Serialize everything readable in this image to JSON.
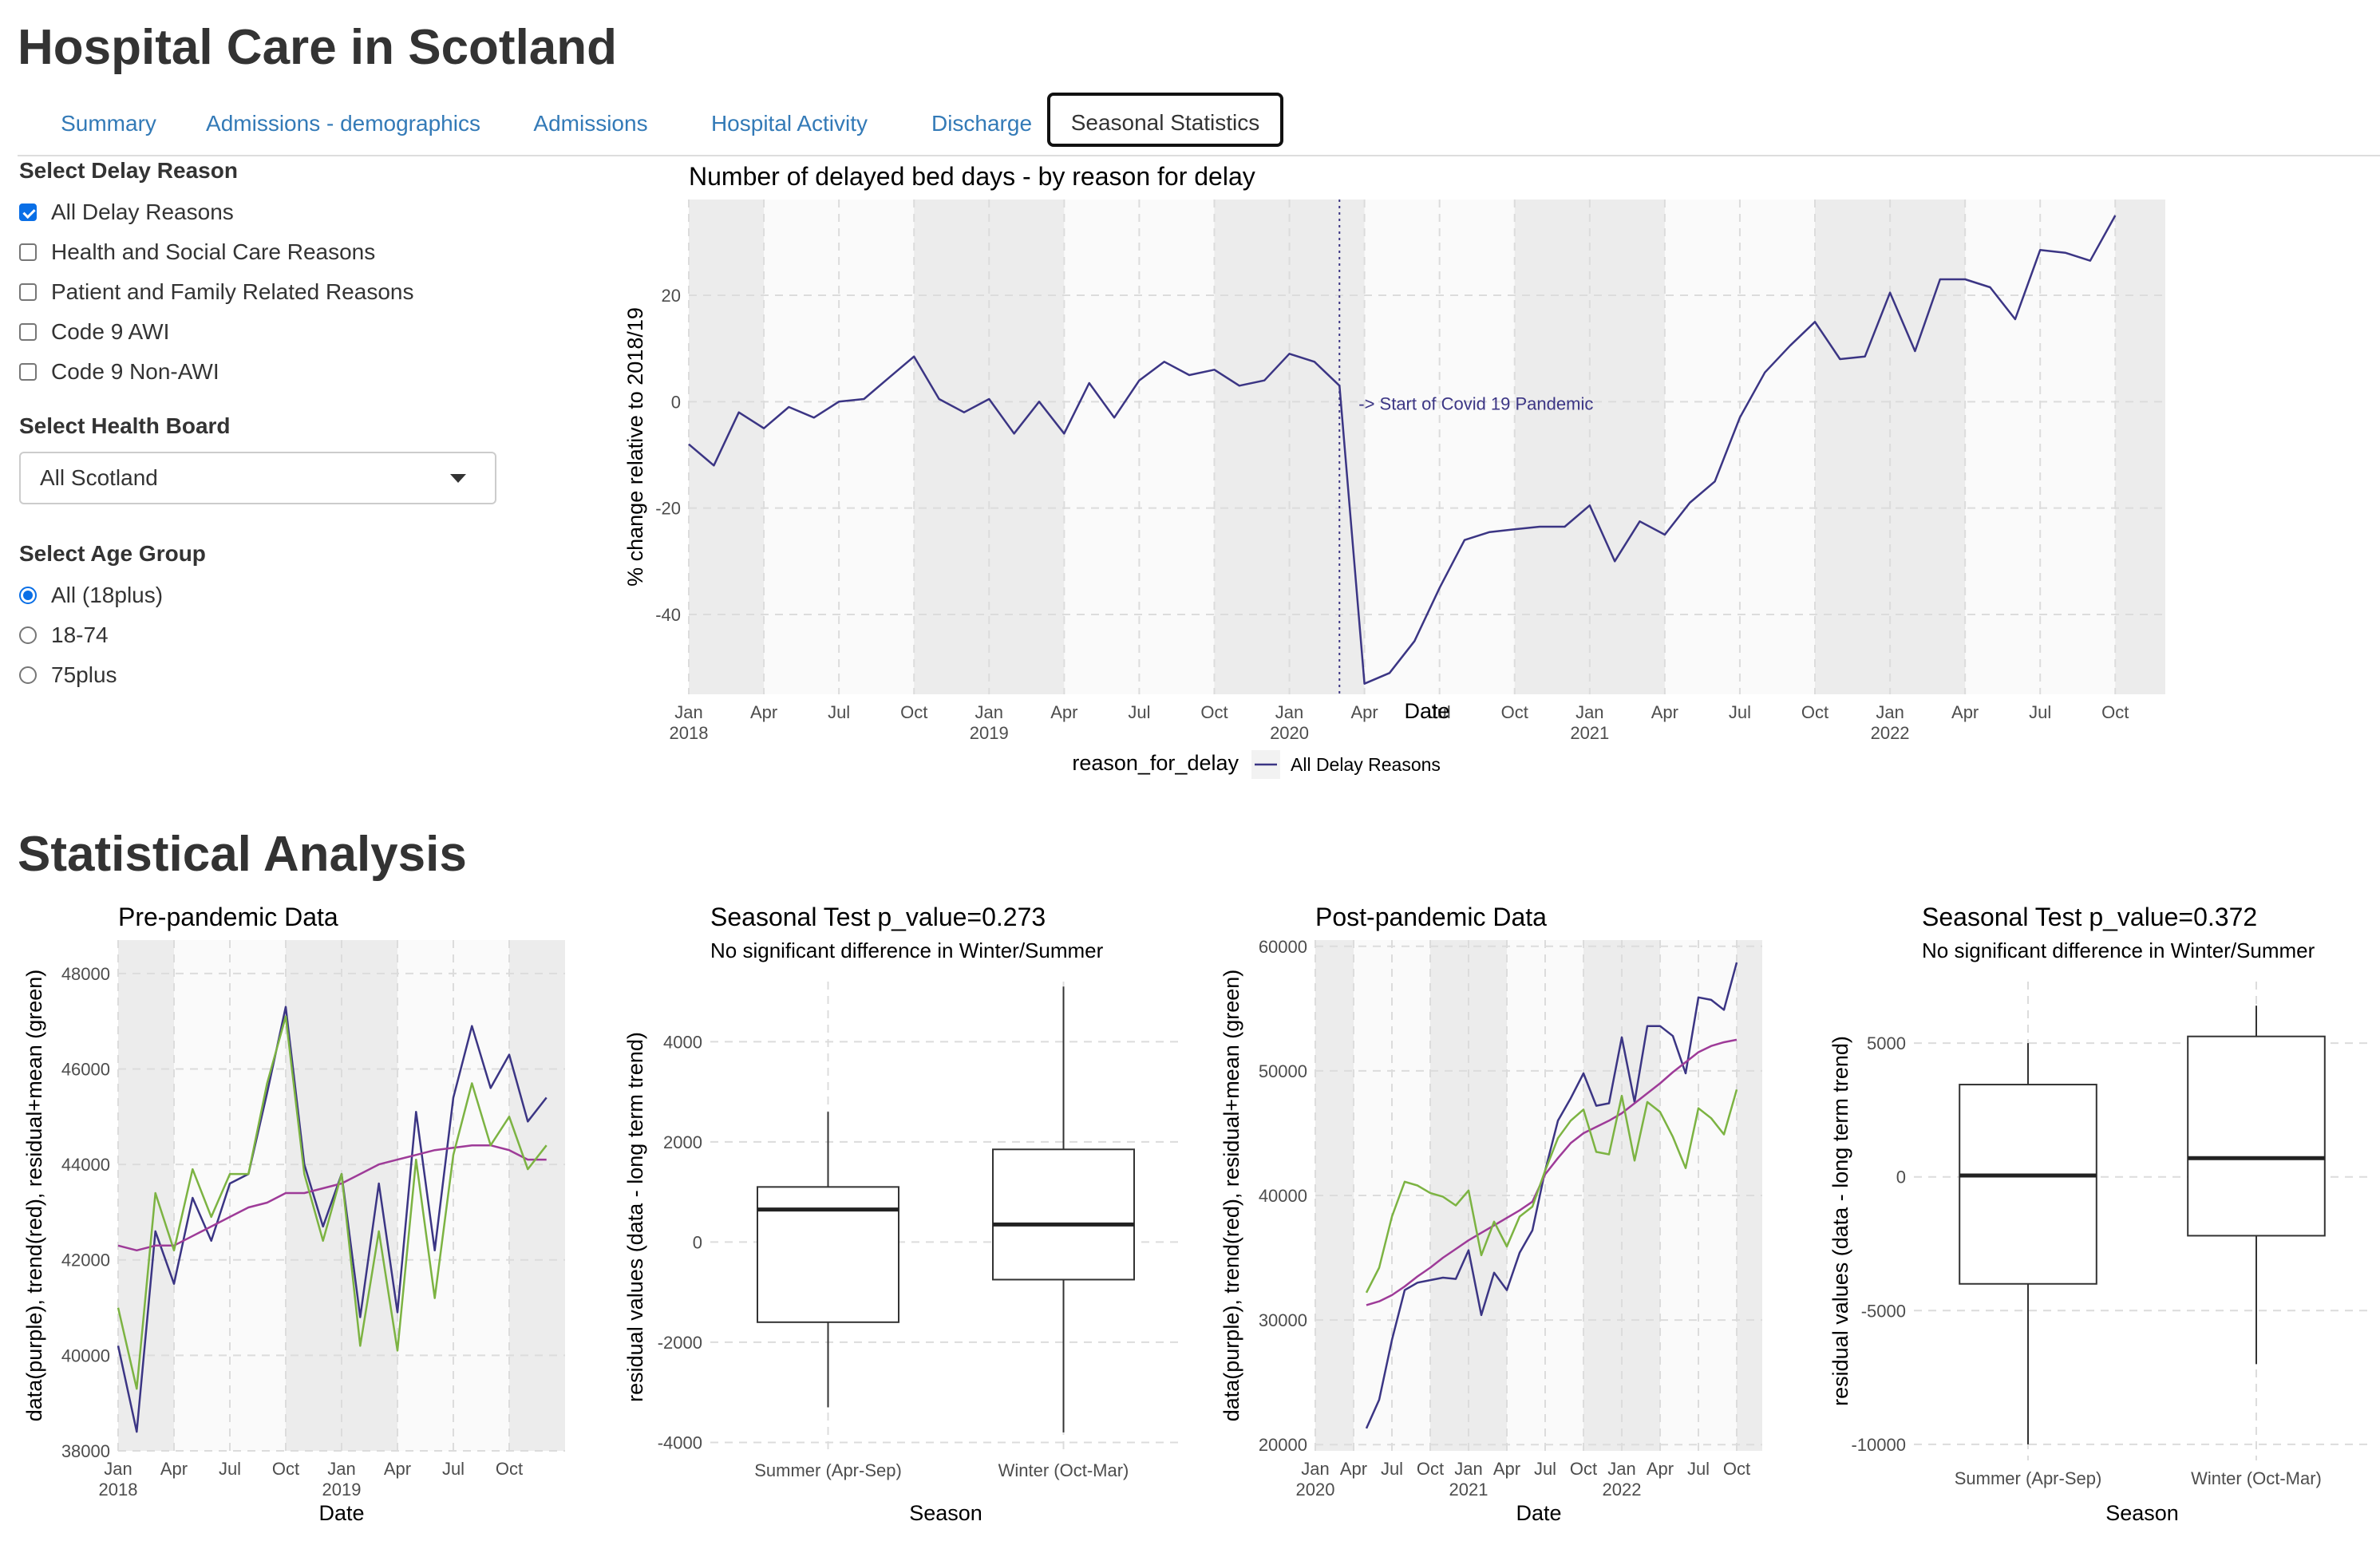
{
  "app": {
    "title": "Hospital Care in Scotland"
  },
  "tabs": [
    "Summary",
    "Admissions - demographics",
    "Admissions",
    "Hospital Activity",
    "Discharge",
    "Seasonal Statistics"
  ],
  "active_tab": "Seasonal Statistics",
  "sidebar": {
    "delay_reason_label": "Select Delay Reason",
    "delay_reasons": [
      {
        "label": "All Delay Reasons",
        "checked": true
      },
      {
        "label": "Health and Social Care Reasons",
        "checked": false
      },
      {
        "label": "Patient and Family Related Reasons",
        "checked": false
      },
      {
        "label": "Code 9 AWI",
        "checked": false
      },
      {
        "label": "Code 9 Non-AWI",
        "checked": false
      }
    ],
    "health_board_label": "Select Health Board",
    "health_board_value": "All Scotland",
    "age_group_label": "Select Age Group",
    "age_groups": [
      {
        "label": "All (18plus)",
        "selected": true
      },
      {
        "label": "18-74",
        "selected": false
      },
      {
        "label": "75plus",
        "selected": false
      }
    ]
  },
  "stats_heading": "Statistical Analysis",
  "colors": {
    "tab_link": "#337ab7",
    "series": "#3b3584",
    "trend": "#9e3b98",
    "residual": "#7cb342",
    "panel_bg": "#ebebeb",
    "checkbox": "#0a6fe6"
  },
  "chart_data": [
    {
      "id": "main",
      "type": "line",
      "title": "Number of delayed bed days - by reason for delay",
      "xlabel": "Date",
      "ylabel": "% change relative to 2018/19",
      "ylim": [
        -55,
        38
      ],
      "yticks": [
        20,
        0,
        -20,
        -40
      ],
      "xlim": [
        "2018-01",
        "2022-12"
      ],
      "xticks": [
        {
          "date": "2018-01",
          "label": "Jan",
          "year": "2018"
        },
        {
          "date": "2018-04",
          "label": "Apr"
        },
        {
          "date": "2018-07",
          "label": "Jul"
        },
        {
          "date": "2018-10",
          "label": "Oct"
        },
        {
          "date": "2019-01",
          "label": "Jan",
          "year": "2019"
        },
        {
          "date": "2019-04",
          "label": "Apr"
        },
        {
          "date": "2019-07",
          "label": "Jul"
        },
        {
          "date": "2019-10",
          "label": "Oct"
        },
        {
          "date": "2020-01",
          "label": "Jan",
          "year": "2020"
        },
        {
          "date": "2020-04",
          "label": "Apr"
        },
        {
          "date": "2020-07",
          "label": "Jul"
        },
        {
          "date": "2020-10",
          "label": "Oct"
        },
        {
          "date": "2021-01",
          "label": "Jan",
          "year": "2021"
        },
        {
          "date": "2021-04",
          "label": "Apr"
        },
        {
          "date": "2021-07",
          "label": "Jul"
        },
        {
          "date": "2021-10",
          "label": "Oct"
        },
        {
          "date": "2022-01",
          "label": "Jan",
          "year": "2022"
        },
        {
          "date": "2022-04",
          "label": "Apr"
        },
        {
          "date": "2022-07",
          "label": "Jul"
        },
        {
          "date": "2022-10",
          "label": "Oct"
        }
      ],
      "shaded_periods": [
        [
          "2018-01",
          "2018-04"
        ],
        [
          "2018-10",
          "2019-04"
        ],
        [
          "2019-10",
          "2020-04"
        ],
        [
          "2020-10",
          "2021-04"
        ],
        [
          "2021-10",
          "2022-04"
        ],
        [
          "2022-10",
          "2022-12"
        ]
      ],
      "vline": {
        "date": "2020-03",
        "label": "-> Start of Covid 19 Pandemic"
      },
      "legend_title": "reason_for_delay",
      "legend_position": "bottom",
      "series": [
        {
          "name": "All Delay Reasons",
          "x": [
            "2018-01",
            "2018-02",
            "2018-03",
            "2018-04",
            "2018-05",
            "2018-06",
            "2018-07",
            "2018-08",
            "2018-09",
            "2018-10",
            "2018-11",
            "2018-12",
            "2019-01",
            "2019-02",
            "2019-03",
            "2019-04",
            "2019-05",
            "2019-06",
            "2019-07",
            "2019-08",
            "2019-09",
            "2019-10",
            "2019-11",
            "2019-12",
            "2020-01",
            "2020-02",
            "2020-03",
            "2020-04",
            "2020-05",
            "2020-06",
            "2020-07",
            "2020-08",
            "2020-09",
            "2020-10",
            "2020-11",
            "2020-12",
            "2021-01",
            "2021-02",
            "2021-03",
            "2021-04",
            "2021-05",
            "2021-06",
            "2021-07",
            "2021-08",
            "2021-09",
            "2021-10",
            "2021-11",
            "2021-12",
            "2022-01",
            "2022-02",
            "2022-03",
            "2022-04",
            "2022-05",
            "2022-06",
            "2022-07",
            "2022-08",
            "2022-09",
            "2022-10"
          ],
          "y": [
            -8,
            -12,
            -2,
            -5,
            -1,
            -3,
            0,
            0.5,
            4.5,
            8.5,
            0.5,
            -2,
            0.5,
            -6,
            0,
            -6,
            3.5,
            -3,
            4,
            7.5,
            5,
            6,
            3,
            4,
            9,
            7.5,
            3,
            -53,
            -51,
            -45,
            -35,
            -26,
            -24.5,
            -24,
            -23.5,
            -23.5,
            -19.5,
            -30,
            -22.5,
            -25,
            -19,
            -15,
            -3,
            5.5,
            10.5,
            15,
            8,
            8.5,
            20.5,
            9.5,
            23,
            23,
            21.5,
            15.5,
            28.5,
            28,
            26.5,
            35
          ]
        }
      ]
    },
    {
      "id": "pre",
      "type": "line",
      "title": "Pre-pandemic Data",
      "xlabel": "Date",
      "ylabel": "data(purple), trend(red), residual+mean (green)",
      "ylim": [
        38000,
        48700
      ],
      "yticks": [
        38000,
        40000,
        42000,
        44000,
        46000,
        48000
      ],
      "xlim": [
        "2018-01",
        "2020-01"
      ],
      "xticks": [
        {
          "date": "2018-01",
          "label": "Jan",
          "year": "2018"
        },
        {
          "date": "2018-04",
          "label": "Apr"
        },
        {
          "date": "2018-07",
          "label": "Jul"
        },
        {
          "date": "2018-10",
          "label": "Oct"
        },
        {
          "date": "2019-01",
          "label": "Jan",
          "year": "2019"
        },
        {
          "date": "2019-04",
          "label": "Apr"
        },
        {
          "date": "2019-07",
          "label": "Jul"
        },
        {
          "date": "2019-10",
          "label": "Oct"
        }
      ],
      "shaded_periods": [
        [
          "2018-01",
          "2018-04"
        ],
        [
          "2018-10",
          "2019-04"
        ],
        [
          "2019-10",
          "2020-01"
        ]
      ],
      "series": [
        {
          "color": "#3b3584",
          "x": [
            "2018-01",
            "2018-02",
            "2018-03",
            "2018-04",
            "2018-05",
            "2018-06",
            "2018-07",
            "2018-08",
            "2018-09",
            "2018-10",
            "2018-11",
            "2018-12",
            "2019-01",
            "2019-02",
            "2019-03",
            "2019-04",
            "2019-05",
            "2019-06",
            "2019-07",
            "2019-08",
            "2019-09",
            "2019-10",
            "2019-11",
            "2019-12"
          ],
          "y": [
            40200,
            38400,
            42600,
            41500,
            43300,
            42400,
            43600,
            43800,
            45500,
            47300,
            44000,
            42700,
            43800,
            40800,
            43600,
            40900,
            45100,
            42200,
            45400,
            46900,
            45600,
            46300,
            44900,
            45400
          ]
        },
        {
          "color": "#9e3b98",
          "x": [
            "2018-01",
            "2018-02",
            "2018-03",
            "2018-04",
            "2018-05",
            "2018-06",
            "2018-07",
            "2018-08",
            "2018-09",
            "2018-10",
            "2018-11",
            "2018-12",
            "2019-01",
            "2019-02",
            "2019-03",
            "2019-04",
            "2019-05",
            "2019-06",
            "2019-07",
            "2019-08",
            "2019-09",
            "2019-10",
            "2019-11",
            "2019-12"
          ],
          "y": [
            42300,
            42200,
            42300,
            42300,
            42500,
            42700,
            42900,
            43100,
            43200,
            43400,
            43400,
            43500,
            43600,
            43800,
            44000,
            44100,
            44200,
            44300,
            44350,
            44400,
            44400,
            44300,
            44100,
            44100
          ]
        },
        {
          "color": "#7cb342",
          "x": [
            "2018-01",
            "2018-02",
            "2018-03",
            "2018-04",
            "2018-05",
            "2018-06",
            "2018-07",
            "2018-08",
            "2018-09",
            "2018-10",
            "2018-11",
            "2018-12",
            "2019-01",
            "2019-02",
            "2019-03",
            "2019-04",
            "2019-05",
            "2019-06",
            "2019-07",
            "2019-08",
            "2019-09",
            "2019-10",
            "2019-11",
            "2019-12"
          ],
          "y": [
            41000,
            39300,
            43400,
            42200,
            43900,
            42900,
            43800,
            43800,
            45700,
            47100,
            43800,
            42400,
            43800,
            40200,
            42600,
            40100,
            44100,
            41200,
            44200,
            45700,
            44400,
            45000,
            43900,
            44400
          ]
        }
      ]
    },
    {
      "id": "seasonal_pre",
      "type": "box",
      "title": "Seasonal Test  p_value=0.273",
      "subtitle": "No significant difference in Winter/Summer",
      "xlabel": "Season",
      "ylabel": "residual values (data - long term trend)",
      "ylim": [
        -4200,
        5200
      ],
      "yticks": [
        4000,
        2000,
        0,
        -2000,
        -4000
      ],
      "categories": [
        "Summer (Apr-Sep)",
        "Winter (Oct-Mar)"
      ],
      "boxes": [
        {
          "min": -3300,
          "q1": -1600,
          "median": 650,
          "q3": 1100,
          "max": 2600
        },
        {
          "min": -3800,
          "q1": -750,
          "median": 350,
          "q3": 1850,
          "max": 5100
        }
      ]
    },
    {
      "id": "post",
      "type": "line",
      "title": "Post-pandemic Data",
      "xlabel": "Date",
      "ylabel": "data(purple), trend(red), residual+mean (green)",
      "ylim": [
        19500,
        60500
      ],
      "yticks": [
        20000,
        30000,
        40000,
        50000,
        60000
      ],
      "xlim": [
        "2020-01",
        "2022-12"
      ],
      "xticks": [
        {
          "date": "2020-01",
          "label": "Jan",
          "year": "2020"
        },
        {
          "date": "2020-04",
          "label": "Apr"
        },
        {
          "date": "2020-07",
          "label": "Jul"
        },
        {
          "date": "2020-10",
          "label": "Oct"
        },
        {
          "date": "2021-01",
          "label": "Jan",
          "year": "2021"
        },
        {
          "date": "2021-04",
          "label": "Apr"
        },
        {
          "date": "2021-07",
          "label": "Jul"
        },
        {
          "date": "2021-10",
          "label": "Oct"
        },
        {
          "date": "2022-01",
          "label": "Jan",
          "year": "2022"
        },
        {
          "date": "2022-04",
          "label": "Apr"
        },
        {
          "date": "2022-07",
          "label": "Jul"
        },
        {
          "date": "2022-10",
          "label": "Oct"
        }
      ],
      "shaded_periods": [
        [
          "2020-01",
          "2020-04"
        ],
        [
          "2020-10",
          "2021-04"
        ],
        [
          "2021-10",
          "2022-04"
        ],
        [
          "2022-10",
          "2022-12"
        ]
      ],
      "series": [
        {
          "color": "#3b3584",
          "x": [
            "2020-05",
            "2020-06",
            "2020-07",
            "2020-08",
            "2020-09",
            "2020-10",
            "2020-11",
            "2020-12",
            "2021-01",
            "2021-02",
            "2021-03",
            "2021-04",
            "2021-05",
            "2021-06",
            "2021-07",
            "2021-08",
            "2021-09",
            "2021-10",
            "2021-11",
            "2021-12",
            "2022-01",
            "2022-02",
            "2022-03",
            "2022-04",
            "2022-05",
            "2022-06",
            "2022-07",
            "2022-08",
            "2022-09",
            "2022-10"
          ],
          "y": [
            21300,
            23600,
            28400,
            32400,
            33000,
            33200,
            33400,
            33300,
            35600,
            30400,
            33800,
            32400,
            35400,
            37200,
            42000,
            46000,
            47800,
            49800,
            47200,
            47400,
            52700,
            47500,
            53600,
            53600,
            52800,
            49800,
            55900,
            55700,
            54900,
            58700
          ]
        },
        {
          "color": "#9e3b98",
          "x": [
            "2020-05",
            "2020-06",
            "2020-07",
            "2020-08",
            "2020-09",
            "2020-10",
            "2020-11",
            "2020-12",
            "2021-01",
            "2021-02",
            "2021-03",
            "2021-04",
            "2021-05",
            "2021-06",
            "2021-07",
            "2021-08",
            "2021-09",
            "2021-10",
            "2021-11",
            "2021-12",
            "2022-01",
            "2022-02",
            "2022-03",
            "2022-04",
            "2022-05",
            "2022-06",
            "2022-07",
            "2022-08",
            "2022-09",
            "2022-10"
          ],
          "y": [
            31200,
            31500,
            32000,
            32700,
            33500,
            34200,
            35000,
            35700,
            36400,
            37000,
            37600,
            38200,
            38800,
            39500,
            41700,
            43000,
            44200,
            45000,
            45500,
            46000,
            46600,
            47400,
            48200,
            49000,
            49900,
            50700,
            51500,
            52000,
            52300,
            52500
          ]
        },
        {
          "color": "#7cb342",
          "x": [
            "2020-05",
            "2020-06",
            "2020-07",
            "2020-08",
            "2020-09",
            "2020-10",
            "2020-11",
            "2020-12",
            "2021-01",
            "2021-02",
            "2021-03",
            "2021-04",
            "2021-05",
            "2021-06",
            "2021-07",
            "2021-08",
            "2021-09",
            "2021-10",
            "2021-11",
            "2021-12",
            "2022-01",
            "2022-02",
            "2022-03",
            "2022-04",
            "2022-05",
            "2022-06",
            "2022-07",
            "2022-08",
            "2022-09",
            "2022-10"
          ],
          "y": [
            32200,
            34200,
            38300,
            41100,
            40800,
            40200,
            39900,
            39200,
            40400,
            35200,
            37900,
            35900,
            38300,
            39100,
            42000,
            44600,
            46000,
            46900,
            43500,
            43300,
            48000,
            42800,
            47500,
            46700,
            44700,
            42200,
            47000,
            46200,
            44900,
            48500
          ]
        }
      ]
    },
    {
      "id": "seasonal_post",
      "type": "box",
      "title": "Seasonal Test  p_value=0.372",
      "subtitle": "No significant difference in Winter/Summer",
      "xlabel": "Season",
      "ylabel": "residual values (data - long term trend)",
      "ylim": [
        -10600,
        7300
      ],
      "yticks": [
        5000,
        0,
        -5000,
        -10000
      ],
      "categories": [
        "Summer (Apr-Sep)",
        "Winter (Oct-Mar)"
      ],
      "boxes": [
        {
          "min": -10000,
          "q1": -4000,
          "median": 50,
          "q3": 3450,
          "max": 5000
        },
        {
          "min": -7000,
          "q1": -2200,
          "median": 700,
          "q3": 5250,
          "max": 6400
        }
      ]
    }
  ]
}
